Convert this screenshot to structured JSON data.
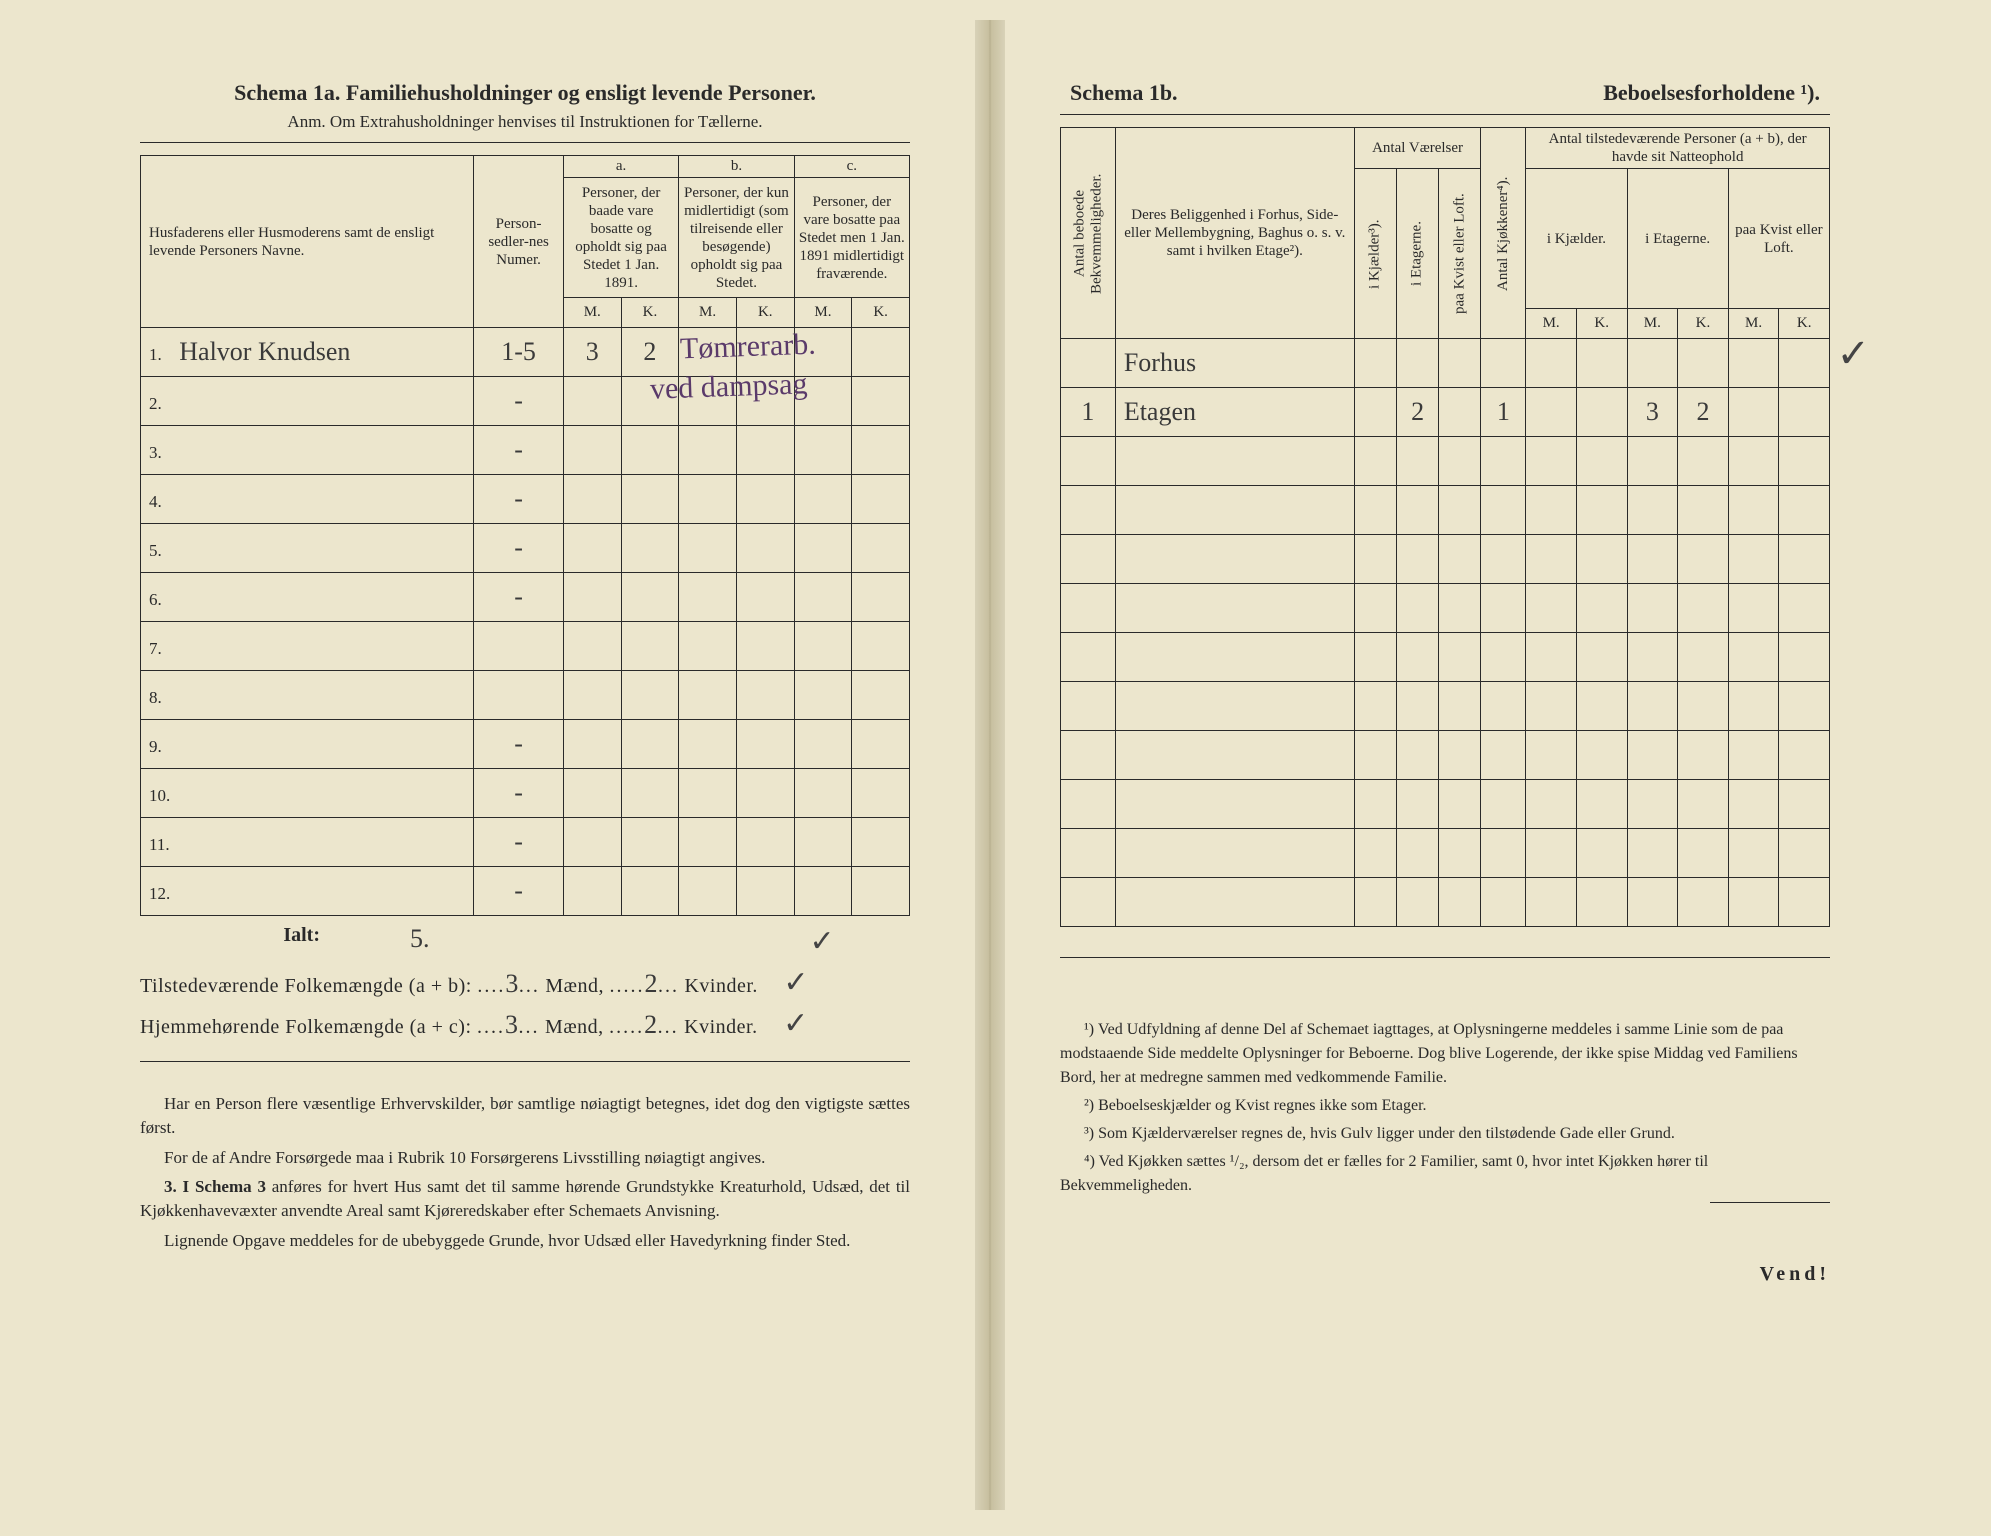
{
  "page_bg": "#ece6cd",
  "ink": "#2a2a2a",
  "hand_ink": "#3a3a3a",
  "purple_ink": "#5a3a6a",
  "schema_a": {
    "title": "Schema 1a.  Familiehusholdninger og ensligt levende Personer.",
    "subtitle": "Anm. Om Extrahusholdninger henvises til Instruktionen for Tællerne.",
    "col_name_hdr": "Husfaderens eller Husmoderens samt de ensligt levende Personers Navne.",
    "col_ps_hdr": "Person-sedler-nes Numer.",
    "group_a": "a.",
    "group_b": "b.",
    "group_c": "c.",
    "hdr_a": "Personer, der baade vare bosatte og opholdt sig paa Stedet 1 Jan. 1891.",
    "hdr_b": "Personer, der kun midlertidigt (som tilreisende eller besøgende) opholdt sig paa Stedet.",
    "hdr_c": "Personer, der vare bosatte paa Stedet men 1 Jan. 1891 midlertidigt fraværende.",
    "mk_m": "M.",
    "mk_k": "K.",
    "rows": [
      {
        "n": "1.",
        "name": "Halvor Knudsen",
        "ps": "1-5",
        "am": "3",
        "ak": "2",
        "bm": "",
        "bk": "",
        "cm": "",
        "ck": ""
      },
      {
        "n": "2.",
        "name": "",
        "ps": "-",
        "am": "",
        "ak": "",
        "bm": "",
        "bk": "",
        "cm": "",
        "ck": ""
      },
      {
        "n": "3.",
        "name": "",
        "ps": "-",
        "am": "",
        "ak": "",
        "bm": "",
        "bk": "",
        "cm": "",
        "ck": ""
      },
      {
        "n": "4.",
        "name": "",
        "ps": "-",
        "am": "",
        "ak": "",
        "bm": "",
        "bk": "",
        "cm": "",
        "ck": ""
      },
      {
        "n": "5.",
        "name": "",
        "ps": "-",
        "am": "",
        "ak": "",
        "bm": "",
        "bk": "",
        "cm": "",
        "ck": ""
      },
      {
        "n": "6.",
        "name": "",
        "ps": "-",
        "am": "",
        "ak": "",
        "bm": "",
        "bk": "",
        "cm": "",
        "ck": ""
      },
      {
        "n": "7.",
        "name": "",
        "ps": "",
        "am": "",
        "ak": "",
        "bm": "",
        "bk": "",
        "cm": "",
        "ck": ""
      },
      {
        "n": "8.",
        "name": "",
        "ps": "",
        "am": "",
        "ak": "",
        "bm": "",
        "bk": "",
        "cm": "",
        "ck": ""
      },
      {
        "n": "9.",
        "name": "",
        "ps": "-",
        "am": "",
        "ak": "",
        "bm": "",
        "bk": "",
        "cm": "",
        "ck": ""
      },
      {
        "n": "10.",
        "name": "",
        "ps": "-",
        "am": "",
        "ak": "",
        "bm": "",
        "bk": "",
        "cm": "",
        "ck": ""
      },
      {
        "n": "11.",
        "name": "",
        "ps": "-",
        "am": "",
        "ak": "",
        "bm": "",
        "bk": "",
        "cm": "",
        "ck": ""
      },
      {
        "n": "12.",
        "name": "",
        "ps": "-",
        "am": "",
        "ak": "",
        "bm": "",
        "bk": "",
        "cm": "",
        "ck": ""
      }
    ],
    "ialt_label": "Ialt:",
    "ialt_val": "5.",
    "sum1_label": "Tilstedeværende Folkemængde (a + b):",
    "sum2_label": "Hjemmehørende Folkemængde (a + c):",
    "sum_m": "3",
    "sum_k": "2",
    "maend": "Mænd,",
    "kvinder": "Kvinder.",
    "check": "✓",
    "purple_annot_1": "Tømrerarb.",
    "purple_annot_2": "ved dampsag",
    "notes_p1": "Har en Person flere væsentlige Erhvervskilder, bør samtlige nøiagtigt betegnes, idet dog den vigtigste sættes først.",
    "notes_p2": "For de af Andre Forsørgede maa i Rubrik 10 Forsørgerens Livsstilling nøiagtigt angives.",
    "notes_p3_b": "3. I Schema 3",
    "notes_p3": " anføres for hvert Hus samt det til samme hørende Grundstykke Kreaturhold, Udsæd, det til Kjøkkenhavevæxter anvendte Areal samt Kjøreredskaber efter Schemaets Anvisning.",
    "notes_p4": "Lignende Opgave meddeles for de ubebyggede Grunde, hvor Udsæd eller Havedyrkning finder Sted."
  },
  "schema_b": {
    "title_l": "Schema 1b.",
    "title_r": "Beboelsesforholdene ¹).",
    "col_ab": "Antal beboede Bekvemmeligheder.",
    "col_loc": "Deres Beliggenhed i Forhus, Side- eller Mellembygning, Baghus o. s. v. samt i hvilken Etage²).",
    "grp_av": "Antal Værelser",
    "col_kj": "i Kjælder³).",
    "col_et": "i Etagerne.",
    "col_kl": "paa Kvist eller Loft.",
    "col_akk": "Antal Kjøkkener⁴).",
    "grp_atp": "Antal tilstedeværende Personer (a + b), der havde sit Natteophold",
    "col_ikj": "i Kjælder.",
    "col_iet": "i Etagerne.",
    "col_pkl": "paa Kvist eller Loft.",
    "mk_m": "M.",
    "mk_k": "K.",
    "row0_loc": "Forhus",
    "row1": {
      "ab": "1",
      "loc": "Etagen",
      "kj": "",
      "et": "2",
      "kl": "",
      "akk": "1",
      "km": "",
      "kk": "",
      "em": "3",
      "ek": "2",
      "pm": "",
      "pk": ""
    },
    "check": "✓",
    "fn1": "¹) Ved Udfyldning af denne Del af Schemaet iagttages, at Oplysningerne meddeles i samme Linie som de paa modstaaende Side meddelte Oplysninger for Beboerne. Dog blive Logerende, der ikke spise Middag ved Familiens Bord, her at medregne sammen med vedkommende Familie.",
    "fn2": "²) Beboelseskjælder og Kvist regnes ikke som Etager.",
    "fn3": "³) Som Kjælderværelser regnes de, hvis Gulv ligger under den tilstødende Gade eller Grund.",
    "fn4": "⁴) Ved Kjøkken sættes ¹/₂, dersom det er fælles for 2 Familier, samt 0, hvor intet Kjøkken hører til Bekvemmeligheden.",
    "vend": "Vend!"
  }
}
